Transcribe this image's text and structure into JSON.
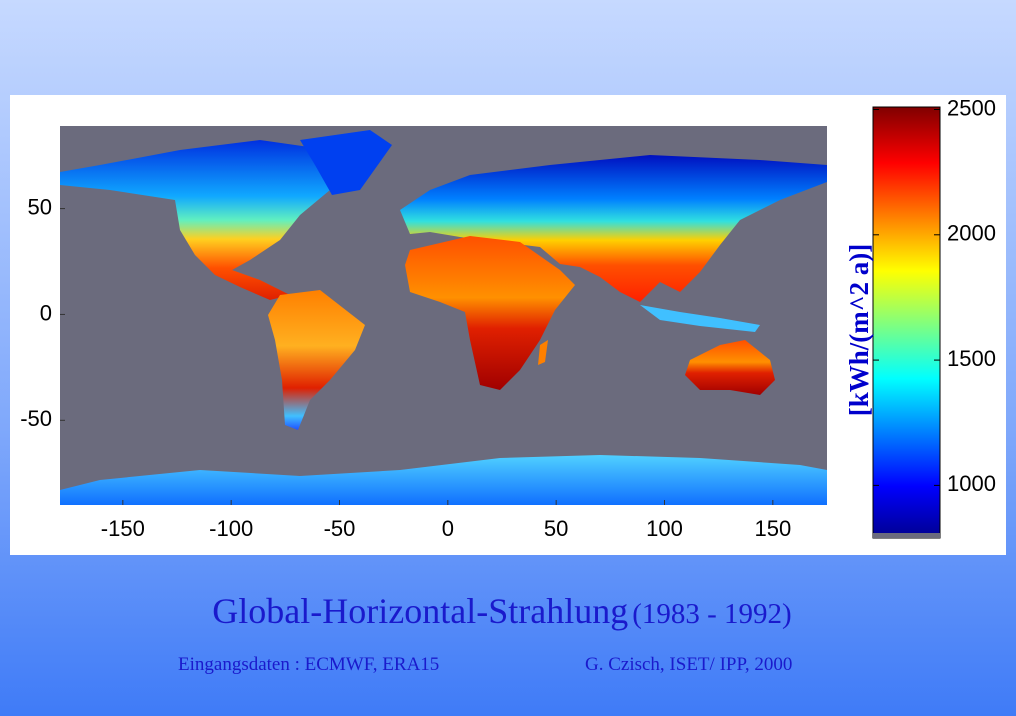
{
  "chart_data": {
    "type": "map",
    "xlim": [
      -179,
      175
    ],
    "ylim": [
      -90,
      89
    ],
    "xticks": [
      -150,
      -100,
      -50,
      0,
      50,
      100,
      150
    ],
    "yticks": [
      -50,
      0,
      50
    ],
    "colorbar": {
      "label": "[kWh/(m^2 a)]",
      "lim": [
        790,
        2510
      ],
      "ticks": [
        1000,
        1500,
        2000,
        2500
      ]
    },
    "title": "Global-Horizontal-Strahlung",
    "title_period": "(1983 - 1992)",
    "footer_left": "Eingangsdaten : ECMWF, ERA15",
    "footer_right": "G. Czisch, ISET/ IPP, 2000"
  }
}
